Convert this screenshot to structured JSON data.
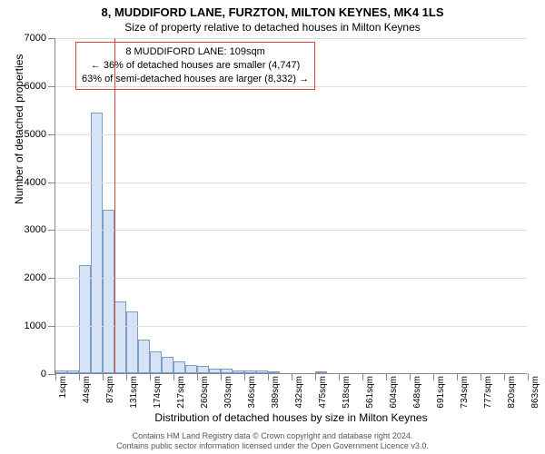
{
  "title_main": "8, MUDDIFORD LANE, FURZTON, MILTON KEYNES, MK4 1LS",
  "title_sub": "Size of property relative to detached houses in Milton Keynes",
  "y_axis": {
    "title": "Number of detached properties",
    "ticks": [
      0,
      1000,
      2000,
      3000,
      4000,
      5000,
      6000,
      7000
    ],
    "max": 7000
  },
  "x_axis": {
    "title": "Distribution of detached houses by size in Milton Keynes",
    "tick_spacing_bars": 2,
    "first_tick_label": "1sqm",
    "tick_step_sqm": 43,
    "num_ticks": 21,
    "labels": [
      "1sqm",
      "44sqm",
      "87sqm",
      "131sqm",
      "174sqm",
      "217sqm",
      "260sqm",
      "303sqm",
      "346sqm",
      "389sqm",
      "432sqm",
      "475sqm",
      "518sqm",
      "561sqm",
      "604sqm",
      "648sqm",
      "691sqm",
      "734sqm",
      "777sqm",
      "820sqm",
      "863sqm"
    ]
  },
  "chart": {
    "type": "histogram",
    "bar_fill": "#d6e3f5",
    "bar_stroke": "#7a9cc6",
    "background": "#ffffff",
    "grid_color": "#dddddd",
    "num_bars": 40,
    "values": [
      60,
      60,
      2250,
      5430,
      3400,
      1500,
      1280,
      700,
      460,
      350,
      240,
      170,
      160,
      100,
      100,
      60,
      60,
      60,
      30,
      0,
      0,
      0,
      30,
      0,
      0,
      0,
      0,
      0,
      0,
      0,
      0,
      0,
      0,
      0,
      0,
      0,
      0,
      0,
      0,
      0
    ]
  },
  "indicator": {
    "color": "#d44",
    "position_sqm": 109,
    "box_lines": [
      "8 MUDDIFORD LANE: 109sqm",
      "← 36% of detached houses are smaller (4,747)",
      "63% of semi-detached houses are larger (8,332) →"
    ]
  },
  "footer": {
    "line1": "Contains HM Land Registry data © Crown copyright and database right 2024.",
    "line2": "Contains public sector information licensed under the Open Government Licence v3.0."
  }
}
